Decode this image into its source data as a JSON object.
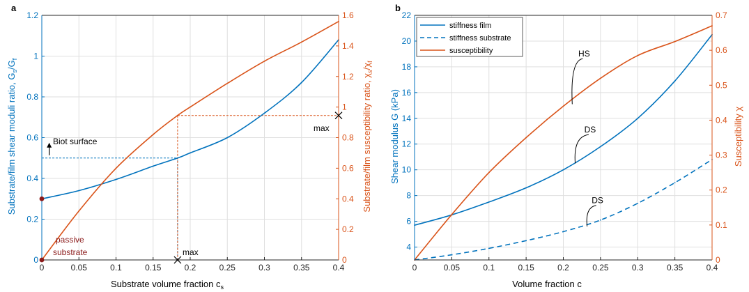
{
  "chart_data": [
    {
      "type": "line",
      "panel_label": "a",
      "xlabel": "Substrate volume fraction c",
      "xlabel_sub": "s",
      "ylabel_left": "Substrate/film shear moduli ratio, G",
      "ylabel_left_sub1": "s",
      "ylabel_left_mid": "/G",
      "ylabel_left_sub2": "f",
      "ylabel_right": "Substrate/film susceptibility ratio, χ",
      "ylabel_right_sub1": "s",
      "ylabel_right_mid": "/χ",
      "ylabel_right_sub2": "f",
      "xlim": [
        0,
        0.4
      ],
      "ylim_left": [
        0,
        1.2
      ],
      "ylim_right": [
        0,
        1.6
      ],
      "xticks": [
        "0",
        "0.05",
        "0.1",
        "0.15",
        "0.2",
        "0.25",
        "0.3",
        "0.35",
        "0.4"
      ],
      "yticks_left": [
        "0",
        "0.2",
        "0.4",
        "0.6",
        "0.8",
        "1",
        "1.2"
      ],
      "yticks_right": [
        "0",
        "0.2",
        "0.4",
        "0.6",
        "0.8",
        "1",
        "1.2",
        "1.4",
        "1.6"
      ],
      "grid": true,
      "colors": {
        "left": "#0072BD",
        "right": "#D95319",
        "passive": "#8B1A1A"
      },
      "series": [
        {
          "axis": "left",
          "x": [
            0,
            0.05,
            0.1,
            0.15,
            0.183,
            0.2,
            0.25,
            0.3,
            0.35,
            0.4
          ],
          "values": [
            0.3,
            0.34,
            0.395,
            0.46,
            0.5,
            0.525,
            0.6,
            0.72,
            0.87,
            1.08
          ]
        },
        {
          "axis": "right",
          "x": [
            0,
            0.05,
            0.1,
            0.15,
            0.183,
            0.2,
            0.25,
            0.3,
            0.35,
            0.4
          ],
          "values": [
            0,
            0.32,
            0.6,
            0.82,
            0.945,
            1.0,
            1.155,
            1.3,
            1.425,
            1.56
          ]
        }
      ],
      "guides": [
        {
          "axis": "left",
          "x": [
            0,
            0.183
          ],
          "y": [
            0.5,
            0.5
          ]
        },
        {
          "axis": "left",
          "x": [
            0.183,
            0.183
          ],
          "y": [
            0,
            0.5
          ]
        },
        {
          "axis": "right",
          "x": [
            0.183,
            0.4
          ],
          "y": [
            0.945,
            0.945
          ]
        },
        {
          "axis": "right",
          "x": [
            0.183,
            0.183
          ],
          "y": [
            0.945,
            0
          ]
        }
      ],
      "annotations": {
        "biot_surface": "Biot surface",
        "passive_line1": "passive",
        "passive_line2": "substrate",
        "max_bottom": "max",
        "max_right": "max"
      },
      "points": {
        "passive_point": {
          "x": 0,
          "y": 0.3
        },
        "origin_point": {
          "x": 0,
          "y": 0
        },
        "max_bottom": {
          "x": 0.183,
          "y": 0
        },
        "max_right": {
          "x": 0.4,
          "y": 0.945
        },
        "biot_arrow": {
          "x": 0.01,
          "y": 0.5
        }
      }
    },
    {
      "type": "line",
      "panel_label": "b",
      "xlabel": "Volume fraction c",
      "ylabel_left": "Shear modulus G (kPa)",
      "ylabel_right": "Susceptibility χ",
      "xlim": [
        0,
        0.4
      ],
      "ylim_left": [
        3,
        22
      ],
      "ylim_right": [
        0,
        0.7
      ],
      "xticks": [
        "0",
        "0.05",
        "0.1",
        "0.15",
        "0.2",
        "0.25",
        "0.3",
        "0.35",
        "0.4"
      ],
      "yticks_left": [
        "4",
        "6",
        "8",
        "10",
        "12",
        "14",
        "16",
        "18",
        "20",
        "22"
      ],
      "yticks_right": [
        "0",
        "0.1",
        "0.2",
        "0.3",
        "0.4",
        "0.5",
        "0.6",
        "0.7"
      ],
      "grid": true,
      "legend_position": "top-left",
      "colors": {
        "left": "#0072BD",
        "right": "#D95319"
      },
      "series": [
        {
          "name": "stiffness film",
          "axis": "left",
          "style": "solid",
          "x": [
            0,
            0.05,
            0.1,
            0.15,
            0.2,
            0.25,
            0.3,
            0.35,
            0.4
          ],
          "values": [
            5.7,
            6.5,
            7.5,
            8.6,
            10.0,
            11.8,
            14.0,
            16.9,
            20.5
          ]
        },
        {
          "name": "stiffness substrate",
          "axis": "left",
          "style": "dashed",
          "x": [
            0,
            0.05,
            0.1,
            0.15,
            0.2,
            0.25,
            0.3,
            0.35,
            0.4
          ],
          "values": [
            3.0,
            3.4,
            3.9,
            4.5,
            5.2,
            6.1,
            7.4,
            9.0,
            10.8
          ]
        },
        {
          "name": "susceptibility",
          "axis": "right",
          "style": "solid",
          "x": [
            0,
            0.05,
            0.1,
            0.15,
            0.2,
            0.25,
            0.3,
            0.35,
            0.4
          ],
          "values": [
            0,
            0.13,
            0.25,
            0.35,
            0.44,
            0.52,
            0.585,
            0.625,
            0.67
          ]
        }
      ],
      "annotations": [
        {
          "text": "HS",
          "x": 0.228,
          "y": 18.8,
          "axis": "left",
          "tip_x": 0.212,
          "tip_y": 15.1
        },
        {
          "text": "DS",
          "x": 0.236,
          "y": 12.9,
          "axis": "left",
          "tip_x": 0.216,
          "tip_y": 10.5
        },
        {
          "text": "DS",
          "x": 0.246,
          "y": 7.4,
          "axis": "left",
          "tip_x": 0.232,
          "tip_y": 5.6
        }
      ]
    }
  ]
}
